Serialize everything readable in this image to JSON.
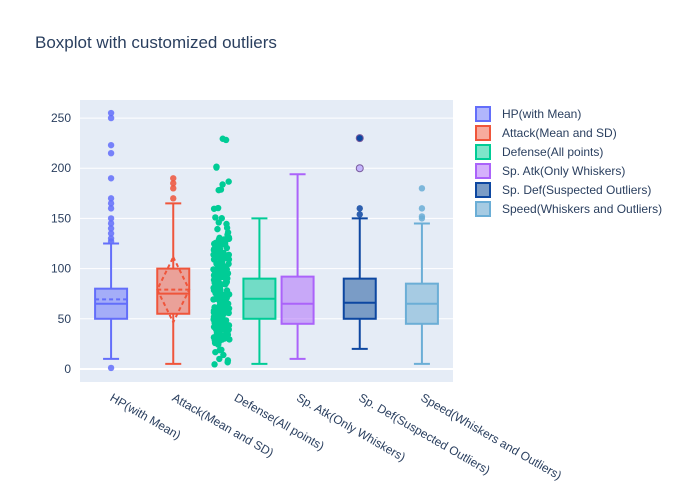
{
  "chart_data": {
    "type": "box",
    "title": "Boxplot with customized outliers",
    "xlabel": "",
    "ylabel": "",
    "ylim": [
      -13,
      268
    ],
    "yticks": [
      0,
      50,
      100,
      150,
      200,
      250
    ],
    "grid": true,
    "legend_position": "right",
    "series": [
      {
        "name": "HP(with Mean)",
        "color": "#636efa",
        "boxmean": "mean",
        "q1": 50,
        "median": 65,
        "q3": 80,
        "lowerfence": 10,
        "upperfence": 125,
        "mean": 69.3,
        "outliers": [
          1,
          127,
          130,
          135,
          140,
          145,
          150,
          160,
          165,
          170,
          190,
          215,
          223,
          250,
          255
        ]
      },
      {
        "name": "Attack(Mean and SD)",
        "color": "#ef553b",
        "boxmean": "sd",
        "q1": 55,
        "median": 75,
        "q3": 100,
        "lowerfence": 5,
        "upperfence": 165,
        "mean": 79,
        "sd": 32.5,
        "outliers": [
          170,
          180,
          185,
          190
        ]
      },
      {
        "name": "Defense(All points)",
        "color": "#00cc96",
        "boxpoints": "all",
        "q1": 50,
        "median": 70,
        "q3": 90,
        "lowerfence": 5,
        "upperfence": 150,
        "points": [
          5,
          10,
          15,
          20,
          25,
          30,
          35,
          40,
          45,
          50,
          55,
          60,
          65,
          70,
          75,
          80,
          85,
          90,
          95,
          100,
          105,
          110,
          115,
          120,
          125,
          130,
          135,
          140,
          145,
          150,
          160,
          180,
          185,
          200,
          230
        ]
      },
      {
        "name": "Sp. Atk(Only Whiskers)",
        "color": "#ab63fa",
        "boxpoints": false,
        "q1": 45,
        "median": 65,
        "q3": 92,
        "lowerfence": 10,
        "upperfence": 194,
        "outliers": []
      },
      {
        "name": "Sp. Def(Suspected Outliers)",
        "color": "#0d47a1",
        "fillcolor": "#7a9cc6",
        "boxpoints": "suspectedoutliers",
        "q1": 50,
        "median": 66,
        "q3": 90,
        "lowerfence": 20,
        "upperfence": 150,
        "outliers": [
          154,
          160
        ],
        "suspected_outliers": [
          200,
          230
        ]
      },
      {
        "name": "Speed(Whiskers and Outliers)",
        "color": "#6baed6",
        "fillcolor": "#a6cbe3",
        "boxpoints": "outliers",
        "q1": 45,
        "median": 65,
        "q3": 85,
        "lowerfence": 5,
        "upperfence": 145,
        "outliers": [
          150,
          152,
          160,
          180
        ]
      }
    ]
  }
}
